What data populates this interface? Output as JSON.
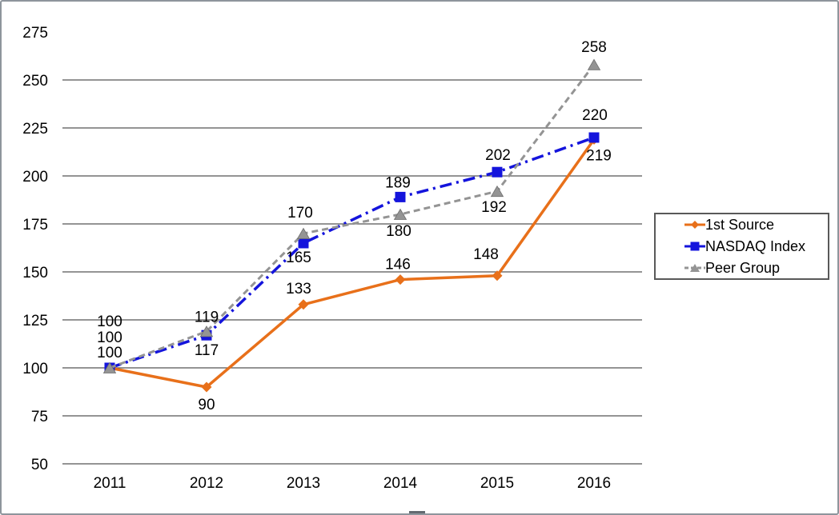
{
  "window": {
    "background": "#ffffff",
    "border_color": "#8e959c"
  },
  "axes": {
    "gridline_color": "#555555",
    "tick_label_color": "#000000",
    "data_label_color": "#000000"
  },
  "legend": {
    "border_color": "#595959",
    "background": "#ffffff"
  },
  "chart_data": {
    "type": "line",
    "title": "",
    "xlabel": "",
    "ylabel": "",
    "x_labels": [
      "2011",
      "2012",
      "2013",
      "2014",
      "2015",
      "2016"
    ],
    "y_tick_labels": [
      50,
      75,
      100,
      125,
      150,
      175,
      200,
      225,
      250,
      275
    ],
    "gridline_values": [
      50,
      75,
      100,
      125,
      150,
      175,
      200,
      225,
      250
    ],
    "ylim": [
      50,
      275
    ],
    "grid": true,
    "legend_position": "right",
    "data_labels_shown": true,
    "series": [
      {
        "name": "1st Source",
        "color": "#E8701A",
        "marker": "diamond",
        "line_style": "solid",
        "values": [
          100,
          90,
          133,
          146,
          148,
          219
        ],
        "label_offsets": [
          [
            0,
            -20
          ],
          [
            0,
            21
          ],
          [
            -6,
            -21
          ],
          [
            -3,
            -20
          ],
          [
            -14,
            -28
          ],
          [
            6,
            19
          ]
        ]
      },
      {
        "name": "NASDAQ Index",
        "color": "#1414DC",
        "marker": "square",
        "line_style": "dash-dot",
        "values": [
          100,
          117,
          165,
          189,
          202,
          220
        ],
        "label_offsets": [
          [
            0,
            -39
          ],
          [
            0,
            18
          ],
          [
            -6,
            17
          ],
          [
            -3,
            -19
          ],
          [
            1,
            -22
          ],
          [
            1,
            -29
          ]
        ]
      },
      {
        "name": "Peer Group",
        "color": "#949494",
        "marker": "triangle",
        "line_style": "dashed",
        "values": [
          100,
          119,
          170,
          180,
          192,
          258
        ],
        "label_offsets": [
          [
            0,
            -59
          ],
          [
            0,
            -19
          ],
          [
            -4,
            -27
          ],
          [
            -2,
            20
          ],
          [
            -4,
            19
          ],
          [
            0,
            -23
          ]
        ]
      }
    ]
  }
}
